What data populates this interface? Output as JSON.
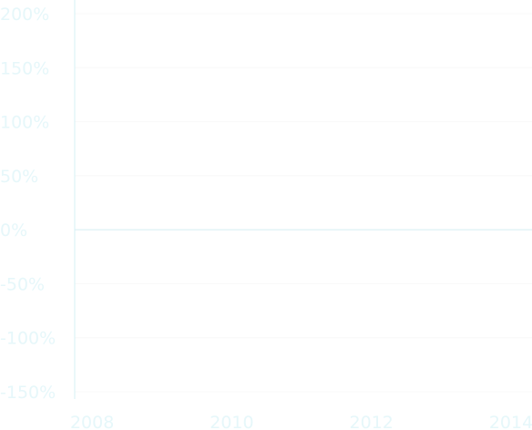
{
  "chart_data": {
    "type": "line",
    "title": "",
    "xlabel": "",
    "ylabel": "",
    "x_tick_labels": [
      "2008",
      "2010",
      "2012",
      "2014"
    ],
    "x_tick_values": [
      2008,
      2010,
      2012,
      2014
    ],
    "y_tick_labels": [
      "200%",
      "150%",
      "100%",
      "50%",
      "0%",
      "-50%",
      "-100%",
      "-150%"
    ],
    "y_tick_values": [
      200,
      150,
      100,
      50,
      0,
      -50,
      -100,
      -150
    ],
    "xlim": [
      2007.75,
      2014.3
    ],
    "ylim": [
      -150,
      200
    ],
    "series": [
      {
        "x": [
          2007.75,
          2014.3
        ],
        "values": [
          0,
          0
        ]
      }
    ],
    "grid": true,
    "legend": "none",
    "colors": {
      "axis": "#d6f0f5",
      "tick_text": "#e6f7fa",
      "grid": "#f8f8f8",
      "series": "#d6f0f5"
    }
  }
}
